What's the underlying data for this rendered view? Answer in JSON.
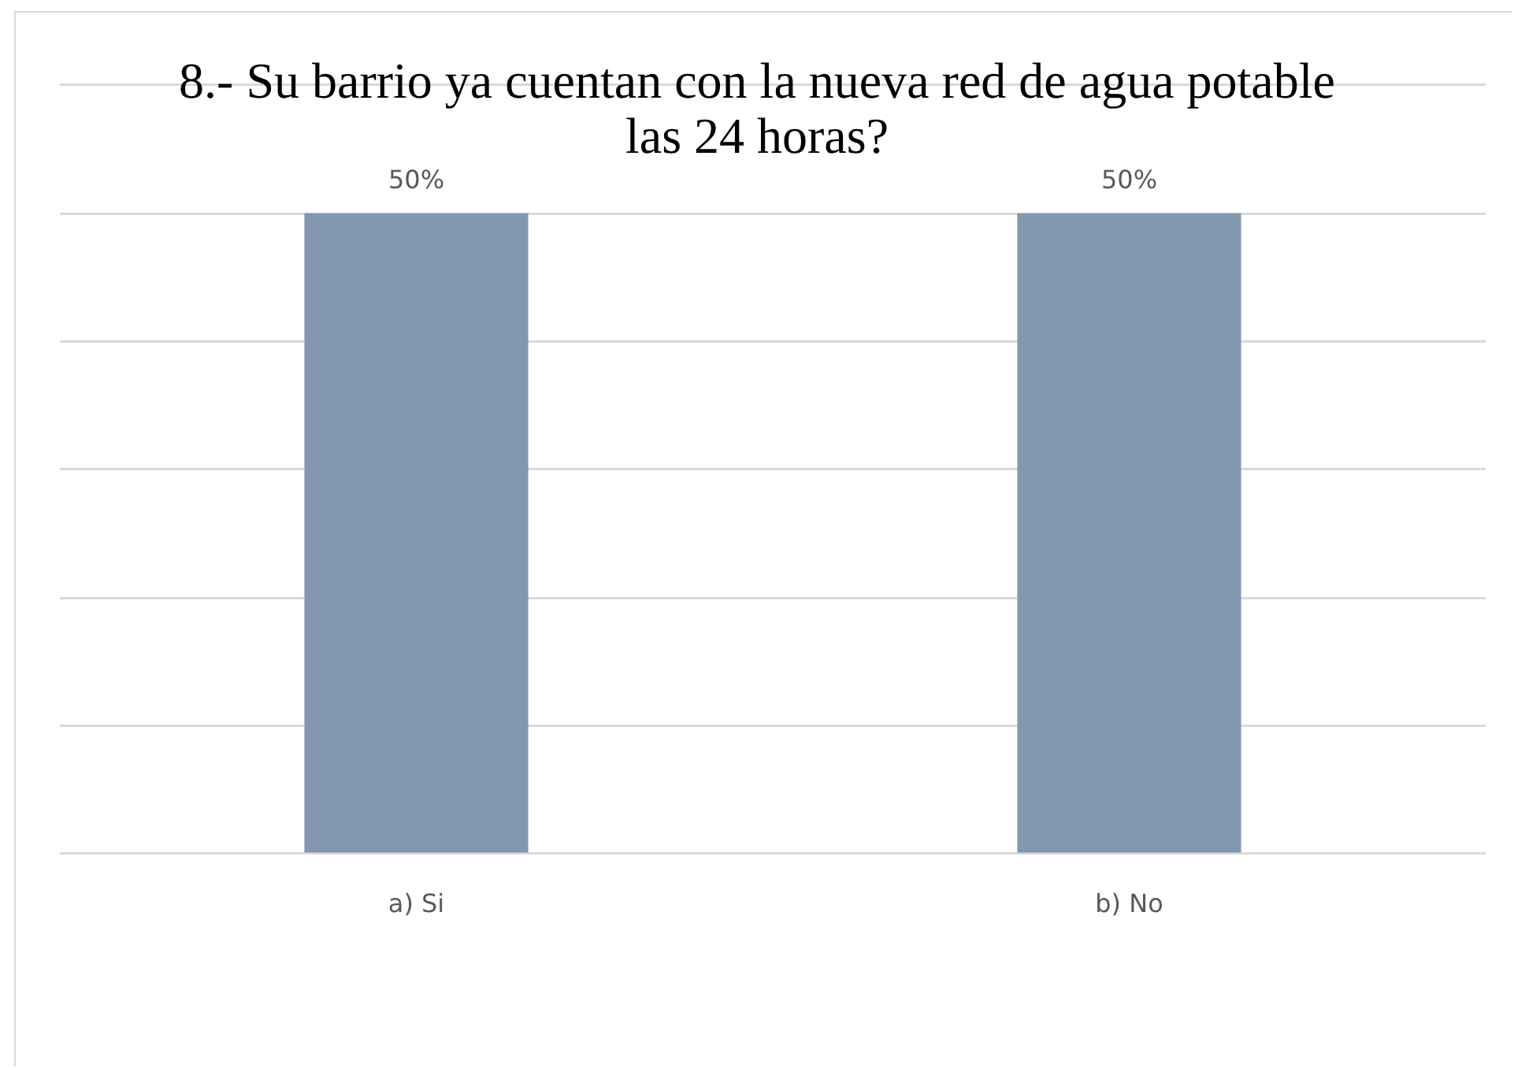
{
  "chart_data": {
    "type": "bar",
    "title": "8.- Su barrio ya cuentan con la nueva red de agua potable las 24 horas?",
    "categories": [
      "a) Si",
      "b) No"
    ],
    "values": [
      50,
      50
    ],
    "color": "#8497b0",
    "value_labels": [
      "50%",
      "50%"
    ],
    "ylim": [
      0,
      60
    ],
    "yticks": [
      {
        "value": 0,
        "label": null
      },
      {
        "value": 10,
        "label": null
      },
      {
        "value": 20,
        "label": null
      },
      {
        "value": 30,
        "label": null
      },
      {
        "value": 40,
        "label": null
      },
      {
        "value": 50,
        "label": null
      },
      {
        "value": 60,
        "label": null
      }
    ],
    "tick_labels": "x",
    "grid": "y",
    "legend": false
  }
}
